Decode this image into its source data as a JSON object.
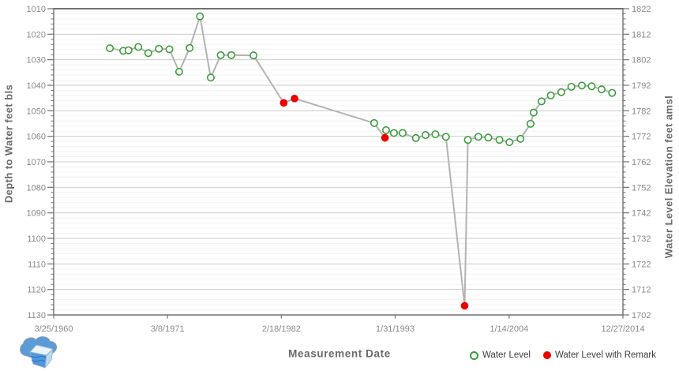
{
  "chart_data": {
    "type": "line",
    "title": "",
    "xlabel": "Measurement Date",
    "ylabel_left": "Depth to Water feet bls",
    "ylabel_right": "Water Level Elevation feet amsl",
    "grid": "horizontal-only",
    "legend_position": "bottom-right",
    "y_left": {
      "min": 1010,
      "max": 1130,
      "major_step": 10,
      "minor_step": 2,
      "direction": "increasing-downward"
    },
    "y_right": {
      "min": 1702,
      "max": 1822,
      "major_step": 10
    },
    "x_domain": [
      1960.23,
      2014.99
    ],
    "x_ticks": [
      {
        "t": 1960.23,
        "label": "3/25/1960"
      },
      {
        "t": 1971.18,
        "label": "3/8/1971"
      },
      {
        "t": 1982.13,
        "label": "2/18/1982"
      },
      {
        "t": 1993.08,
        "label": "1/31/1993"
      },
      {
        "t": 2004.04,
        "label": "1/14/2004"
      },
      {
        "t": 2014.99,
        "label": "12/27/2014"
      }
    ],
    "series": [
      {
        "name": "Water Level",
        "marker": "open-circle",
        "points": [
          [
            1965.63,
            1025.5
          ],
          [
            1966.92,
            1026.5
          ],
          [
            1967.43,
            1026.3
          ],
          [
            1968.37,
            1025.0
          ],
          [
            1969.33,
            1027.4
          ],
          [
            1970.35,
            1025.7
          ],
          [
            1971.36,
            1025.9
          ],
          [
            1972.3,
            1034.7
          ],
          [
            1973.31,
            1025.4
          ],
          [
            1974.3,
            1013.0
          ],
          [
            1975.34,
            1037.0
          ],
          [
            1976.3,
            1028.2
          ],
          [
            1977.32,
            1028.2
          ],
          [
            1979.45,
            1028.3
          ],
          [
            1991.06,
            1054.8
          ],
          [
            1992.2,
            1057.6
          ],
          [
            1992.96,
            1058.7
          ],
          [
            1993.8,
            1058.7
          ],
          [
            1995.07,
            1060.7
          ],
          [
            1996.0,
            1059.5
          ],
          [
            1996.95,
            1059.2
          ],
          [
            1997.96,
            1060.2
          ],
          [
            2000.07,
            1061.4
          ],
          [
            2001.08,
            1060.2
          ],
          [
            2002.04,
            1060.5
          ],
          [
            2003.11,
            1061.4
          ],
          [
            2004.07,
            1062.3
          ],
          [
            2005.13,
            1061.0
          ],
          [
            2006.1,
            1055.1
          ],
          [
            2006.4,
            1050.7
          ],
          [
            2007.16,
            1046.3
          ],
          [
            2008.05,
            1044.0
          ],
          [
            2009.06,
            1042.7
          ],
          [
            2010.03,
            1040.6
          ],
          [
            2011.04,
            1040.1
          ],
          [
            2011.98,
            1040.4
          ],
          [
            2012.94,
            1041.6
          ],
          [
            2013.95,
            1043.0
          ]
        ]
      },
      {
        "name": "Water Level with Remark",
        "marker": "filled-circle",
        "points": [
          [
            1982.36,
            1046.9
          ],
          [
            1983.4,
            1045.2
          ],
          [
            1992.1,
            1060.6
          ],
          [
            1999.76,
            1126.4
          ]
        ]
      }
    ]
  },
  "legend": {
    "water_level": "Water Level",
    "water_level_with_remark": "Water Level with Remark"
  },
  "colors": {
    "water_level_green": "#3a9e3a",
    "remark_red": "#ee0000",
    "line_gray": "#b3b3b3",
    "grid_major": "#cccccc",
    "grid_minor": "#f3f3f3",
    "axis_frame": "#707070",
    "tick_label": "#8a8a8a",
    "axis_title": "#6b6b6b",
    "legend_text": "#3c3c3c",
    "logo_blue": "#5b9bd8",
    "logo_light": "#eaf4fb",
    "logo_mid": "#b9dcf2"
  }
}
